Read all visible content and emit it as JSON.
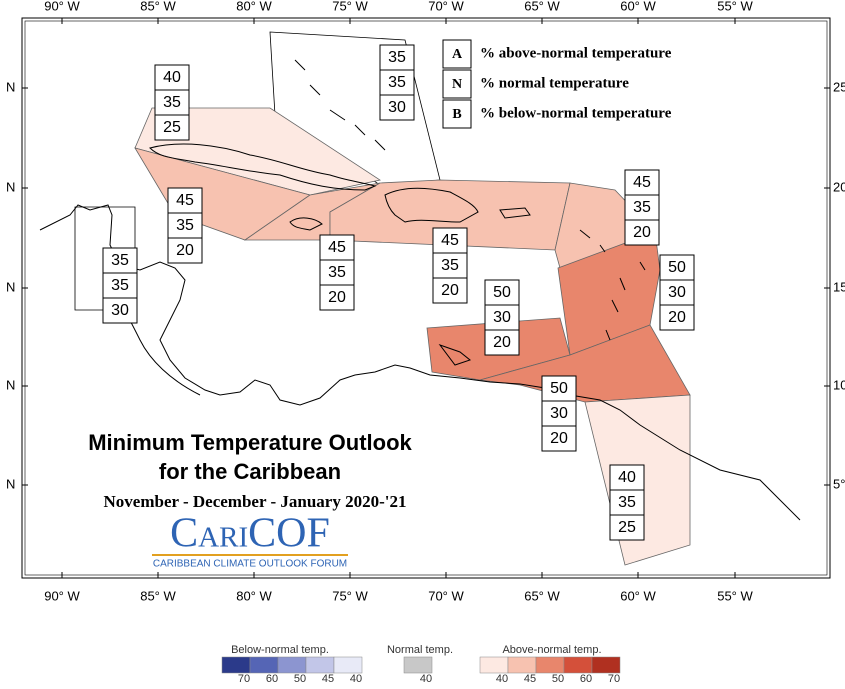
{
  "longitude_labels": [
    "90° W",
    "85° W",
    "80° W",
    "75° W",
    "70° W",
    "65° W",
    "60° W",
    "55° W"
  ],
  "latitude_labels_left": [
    "N",
    "N",
    "N",
    "N",
    "N"
  ],
  "latitude_labels_right": [
    "25°",
    "20°",
    "15°",
    "10°",
    "5°"
  ],
  "key": [
    {
      "letter": "A",
      "text": "% above-normal temperature"
    },
    {
      "letter": "N",
      "text": "% normal temperature"
    },
    {
      "letter": "B",
      "text": "% below-normal temperature"
    }
  ],
  "regions": [
    {
      "above": 35,
      "normal": 35,
      "below": 30,
      "color": "#ffffff"
    },
    {
      "above": 40,
      "normal": 35,
      "below": 25,
      "color": "#fde9e2"
    },
    {
      "above": 45,
      "normal": 35,
      "below": 20,
      "color": "#f7c2b0"
    },
    {
      "above": 45,
      "normal": 35,
      "below": 20,
      "color": "#f7c2b0"
    },
    {
      "above": 45,
      "normal": 35,
      "below": 20,
      "color": "#f7c2b0"
    },
    {
      "above": 45,
      "normal": 35,
      "below": 20,
      "color": "#f7c2b0"
    },
    {
      "above": 50,
      "normal": 30,
      "below": 20,
      "color": "#e8866c"
    },
    {
      "above": 50,
      "normal": 30,
      "below": 20,
      "color": "#e8866c"
    },
    {
      "above": 50,
      "normal": 30,
      "below": 20,
      "color": "#e8866c"
    },
    {
      "above": 40,
      "normal": 35,
      "below": 25,
      "color": "#fde9e2"
    },
    {
      "above": 35,
      "normal": 35,
      "below": 30,
      "color": "#ffffff"
    }
  ],
  "title": [
    "Minimum Temperature Outlook",
    "for the Caribbean"
  ],
  "subtitle": "November - December - January 2020-'21",
  "logo": {
    "name": "CariCOF",
    "tagline": "CARIBBEAN CLIMATE OUTLOOK FORUM"
  },
  "colorbar": {
    "below": {
      "label": "Below-normal temp.",
      "ticks": [
        70,
        60,
        50,
        45,
        40
      ],
      "colors": [
        "#2b3a8a",
        "#5565b5",
        "#8c95d0",
        "#c2c6e8",
        "#e8eaf7"
      ]
    },
    "normal": {
      "label": "Normal temp.",
      "ticks": [
        40
      ],
      "colors": [
        "#c8c8c8"
      ]
    },
    "above": {
      "label": "Above-normal temp.",
      "ticks": [
        40,
        45,
        50,
        60,
        70
      ],
      "colors": [
        "#fde9e2",
        "#f7c2b0",
        "#e8866c",
        "#d4503a",
        "#b03020"
      ]
    }
  }
}
